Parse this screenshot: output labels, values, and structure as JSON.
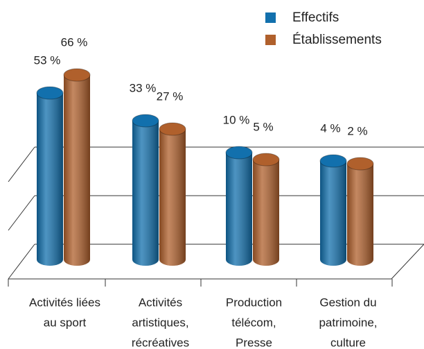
{
  "chart_data": {
    "type": "bar",
    "categories": [
      [
        "Activités liées",
        "au sport"
      ],
      [
        "Activités",
        "artistiques,",
        "récréatives"
      ],
      [
        "Production",
        "télécom,",
        "Presse"
      ],
      [
        "Gestion du",
        "patrimoine,",
        "culture"
      ]
    ],
    "series": [
      {
        "name": "Effectifs",
        "color": "#1270ad",
        "values": [
          53,
          33,
          10,
          4
        ],
        "value_labels": [
          "53 %",
          "33 %",
          "10 %",
          "4 %"
        ]
      },
      {
        "name": "Établissements",
        "color": "#b0602c",
        "values": [
          66,
          27,
          5,
          2
        ],
        "value_labels": [
          "66 %",
          "27 %",
          "5 %",
          "2 %"
        ]
      }
    ],
    "ylim": [
      -70,
      70
    ],
    "yticks": [
      -70,
      -35,
      0
    ],
    "grid": true,
    "legend": "top-right"
  }
}
